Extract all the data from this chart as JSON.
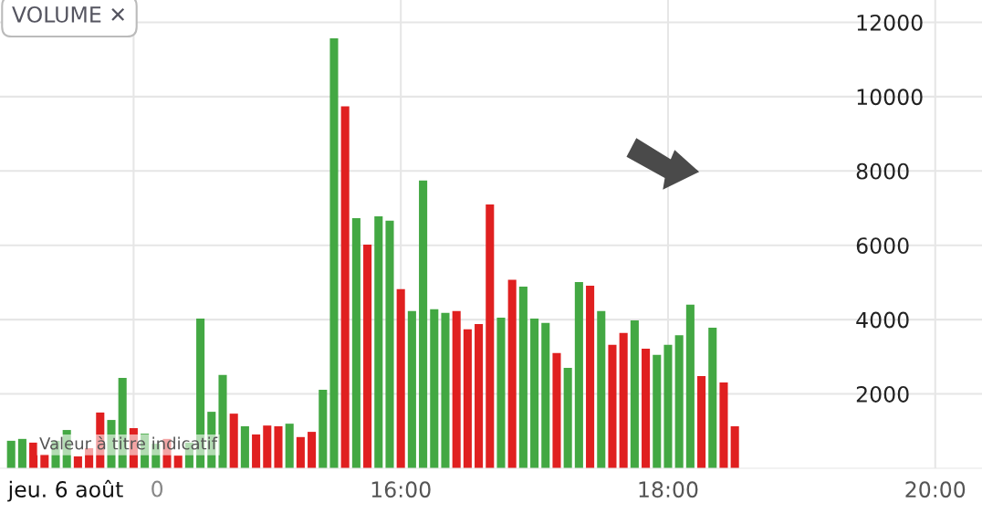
{
  "chart_data": {
    "type": "bar",
    "title": "VOLUME ✕",
    "x": [
      13.0833,
      13.1667,
      13.25,
      13.3333,
      13.4167,
      13.5,
      13.5833,
      13.6667,
      13.75,
      13.8333,
      13.9167,
      14,
      14.0833,
      14.1667,
      14.25,
      14.3333,
      14.4167,
      14.5,
      14.5833,
      14.6667,
      14.75,
      14.8333,
      14.9167,
      15,
      15.0833,
      15.1667,
      15.25,
      15.3333,
      15.4167,
      15.5,
      15.5833,
      15.6667,
      15.75,
      15.8333,
      15.9167,
      16,
      16.0833,
      16.1667,
      16.25,
      16.3333,
      16.4167,
      16.5,
      16.5833,
      16.6667,
      16.75,
      16.8333,
      16.9167,
      17,
      17.0833,
      17.1667,
      17.25,
      17.3333,
      17.4167,
      17.5,
      17.5833,
      17.6667,
      17.75,
      17.8333,
      17.9167,
      18,
      18.0833,
      18.1667,
      18.25,
      18.3333,
      18.4167,
      18.5
    ],
    "values": [
      740,
      790,
      690,
      370,
      740,
      1030,
      320,
      540,
      1500,
      1300,
      2430,
      1080,
      930,
      660,
      790,
      340,
      690,
      4030,
      1520,
      2510,
      1470,
      1130,
      910,
      1150,
      1130,
      1200,
      840,
      980,
      2110,
      11570,
      9740,
      6730,
      6020,
      6780,
      6660,
      4820,
      4230,
      7740,
      4280,
      4180,
      4230,
      3740,
      3880,
      7100,
      4050,
      5070,
      4890,
      4030,
      3910,
      3100,
      2700,
      5010,
      4910,
      4230,
      3320,
      3640,
      3980,
      3220,
      3050,
      3320,
      3580,
      4400,
      2480,
      3780,
      2310,
      1130
    ],
    "colors": [
      "#43a843",
      "#43a843",
      "#e02020",
      "#e02020",
      "#43a843",
      "#43a843",
      "#e02020",
      "#e02020",
      "#e02020",
      "#43a843",
      "#43a843",
      "#e02020",
      "#43a843",
      "#43a843",
      "#e02020",
      "#e02020",
      "#43a843",
      "#43a843",
      "#43a843",
      "#43a843",
      "#e02020",
      "#43a843",
      "#e02020",
      "#e02020",
      "#e02020",
      "#43a843",
      "#e02020",
      "#e02020",
      "#43a843",
      "#43a843",
      "#e02020",
      "#43a843",
      "#e02020",
      "#43a843",
      "#43a843",
      "#e02020",
      "#43a843",
      "#43a843",
      "#43a843",
      "#43a843",
      "#e02020",
      "#e02020",
      "#e02020",
      "#e02020",
      "#43a843",
      "#e02020",
      "#43a843",
      "#43a843",
      "#43a843",
      "#e02020",
      "#43a843",
      "#43a843",
      "#e02020",
      "#43a843",
      "#e02020",
      "#e02020",
      "#43a843",
      "#e02020",
      "#43a843",
      "#43a843",
      "#43a843",
      "#43a843",
      "#e02020",
      "#43a843",
      "#e02020",
      "#e02020"
    ],
    "xlim": [
      13.0,
      20.35
    ],
    "xticks": [
      {
        "value": 14,
        "label": null
      },
      {
        "value": 16,
        "label": "16:00"
      },
      {
        "value": 18,
        "label": "18:00"
      },
      {
        "value": 20,
        "label": "20:00"
      }
    ],
    "ylim": [
      0,
      12600
    ],
    "yticks": [
      2000,
      4000,
      6000,
      8000,
      10000,
      12000
    ],
    "grid": true,
    "annotations": [
      "jeu. 6 août",
      "Valeur à titre indicatif",
      "0"
    ]
  }
}
